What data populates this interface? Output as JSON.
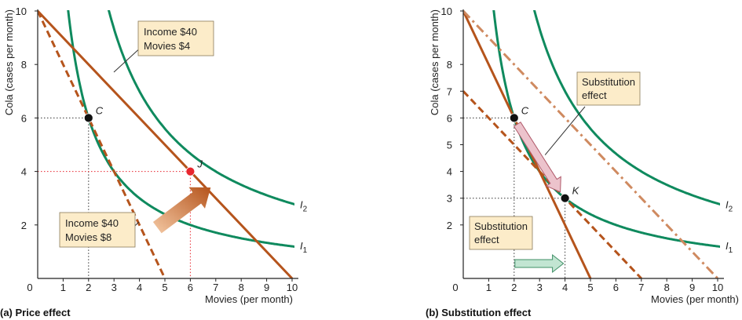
{
  "chart_data": [
    {
      "type": "line",
      "caption": "(a) Price effect",
      "xlabel": "Movies (per month)",
      "ylabel": "Cola (cases per month)",
      "xlim": [
        0,
        10
      ],
      "ylim": [
        0,
        10
      ],
      "x_ticks": [
        "0",
        "1",
        "2",
        "3",
        "4",
        "5",
        "6",
        "7",
        "8",
        "9",
        "10"
      ],
      "y_ticks": [
        "2",
        "4",
        "6",
        "8",
        "10"
      ],
      "highlight_ticks": {
        "x": "6",
        "y": "4"
      },
      "budget_lines": [
        {
          "label_lines": [
            "Income $40",
            "Movies $4"
          ],
          "intercept_x": 10,
          "intercept_y": 10,
          "style": "solid"
        },
        {
          "label_lines": [
            "Income $40",
            "Movies $8"
          ],
          "intercept_x": 5,
          "intercept_y": 10,
          "style": "dashed"
        }
      ],
      "indifference_curves": [
        {
          "name": "I",
          "subscript": "1",
          "k": 12
        },
        {
          "name": "I",
          "subscript": "2",
          "k": 28
        }
      ],
      "points": [
        {
          "label": "C",
          "x": 2,
          "y": 6,
          "color": "#111111"
        },
        {
          "label": "J",
          "x": 6,
          "y": 4,
          "color": "#e8262e"
        }
      ],
      "arrow": {
        "from": [
          4.7,
          1.9
        ],
        "to": [
          6.8,
          3.4
        ]
      }
    },
    {
      "type": "line",
      "caption": "(b) Substitution effect",
      "xlabel": "Movies (per month)",
      "ylabel": "Cola (cases per month)",
      "xlim": [
        0,
        10
      ],
      "ylim": [
        0,
        10
      ],
      "x_ticks": [
        "0",
        "1",
        "2",
        "3",
        "4",
        "5",
        "6",
        "7",
        "8",
        "9",
        "10"
      ],
      "y_ticks": [
        "2",
        "3",
        "4",
        "5",
        "6",
        "7",
        "8",
        "10"
      ],
      "budget_lines": [
        {
          "intercept_x": 5,
          "intercept_y": 10,
          "style": "solid"
        },
        {
          "intercept_x": 7,
          "intercept_y": 7,
          "style": "dashed"
        },
        {
          "intercept_x": 10,
          "intercept_y": 10,
          "style": "dash-dot"
        }
      ],
      "indifference_curves": [
        {
          "name": "I",
          "subscript": "1",
          "k": 12
        },
        {
          "name": "I",
          "subscript": "2",
          "k": 28
        }
      ],
      "points": [
        {
          "label": "C",
          "x": 2,
          "y": 6,
          "color": "#111111"
        },
        {
          "label": "K",
          "x": 4,
          "y": 3,
          "color": "#111111"
        }
      ],
      "annotations": [
        {
          "text_lines": [
            "Substitution",
            "effect"
          ],
          "target": "curve-arrow"
        },
        {
          "text_lines": [
            "Substitution",
            "effect"
          ],
          "target": "x-arrow"
        }
      ],
      "x_arrow": {
        "from": 2,
        "to": 4
      }
    }
  ],
  "colors": {
    "budget": "#b5541c",
    "budget_light": "#cf8a60",
    "curve": "#0f8a5e",
    "label_box": "#fcecc9",
    "highlight": "#e8262e",
    "arrow_fill_pink": "#ecc3cc",
    "arrow_fill_green": "#c2e5d2"
  }
}
